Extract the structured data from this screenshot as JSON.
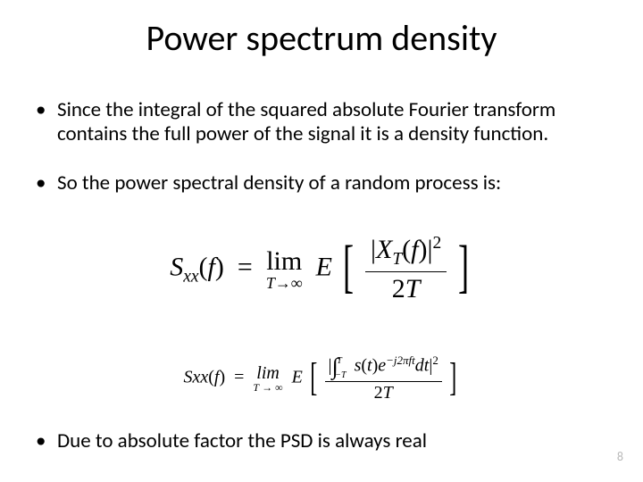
{
  "slide": {
    "title": "Power spectrum density",
    "bullets": [
      "Since the integral of the squared absolute  Fourier transform contains the full power of the signal it is a density function.",
      " So the power spectral density of a random process is:",
      "Due to absolute factor the PSD is always real"
    ],
    "page_number": "8",
    "equations": {
      "eq1": {
        "lhs_fn": "S",
        "lhs_sub": "xx",
        "lhs_arg": "f",
        "lim_label": "lim",
        "lim_cond": "T→∞",
        "expect": "E",
        "num_fn": "X",
        "num_sub": "T",
        "num_arg": "f",
        "num_exp": "2",
        "den": "2T"
      },
      "eq2": {
        "lhs_fn": "Sxx",
        "lhs_arg": "f",
        "lim_label": "lim",
        "lim_left": "T",
        "lim_right": "∞",
        "expect": "E",
        "int_upper": "T",
        "int_lower": "−T",
        "integrand_s": "s",
        "integrand_arg": "t",
        "exp_base": "e",
        "exp_pow": "−j2πft",
        "dt": "dt",
        "num_exp": "2",
        "den": "2T"
      }
    },
    "style": {
      "background": "#ffffff",
      "text_color": "#000000",
      "title_fontsize": 40,
      "body_fontsize": 23,
      "eq1_fontsize": 30,
      "eq2_fontsize": 20,
      "pagenum_color": "#b9b9b9",
      "pagenum_fontsize": 14,
      "font_family_body": "Calibri",
      "font_family_math": "Times New Roman"
    }
  }
}
